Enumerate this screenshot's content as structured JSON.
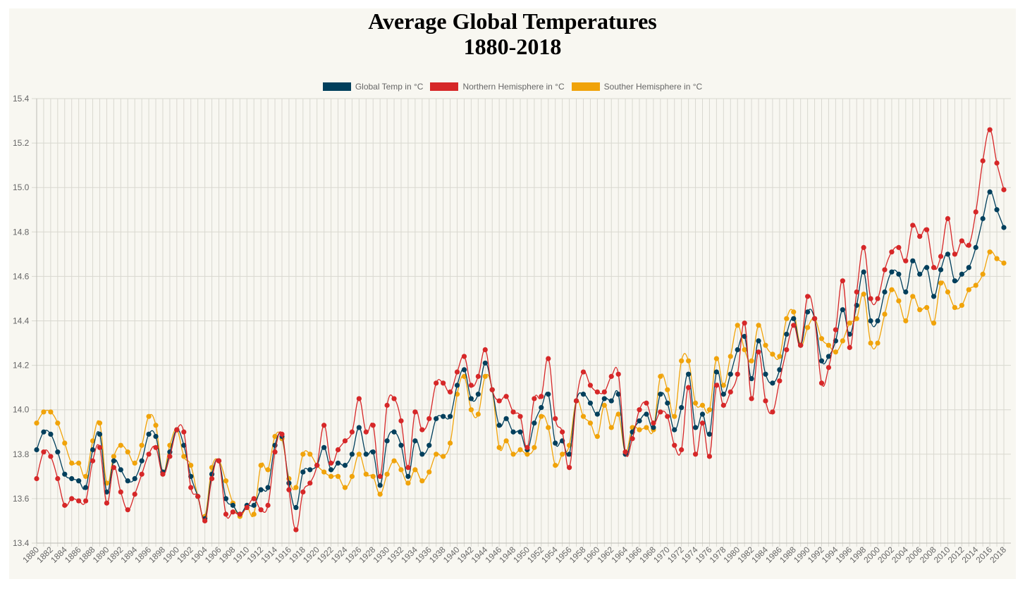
{
  "chart_data": {
    "type": "line",
    "title": [
      "Average Global Temperatures",
      "1880-2018"
    ],
    "xlabel": "",
    "ylabel": "",
    "ylim": [
      13.4,
      15.4
    ],
    "yticks": [
      "13.4",
      "13.6",
      "13.8",
      "14.0",
      "14.2",
      "14.4",
      "14.6",
      "14.8",
      "15.0",
      "15.2",
      "15.4"
    ],
    "grid": true,
    "legend_position": "top-center",
    "x": [
      1880,
      1881,
      1882,
      1883,
      1884,
      1885,
      1886,
      1887,
      1888,
      1889,
      1890,
      1891,
      1892,
      1893,
      1894,
      1895,
      1896,
      1897,
      1898,
      1899,
      1900,
      1901,
      1902,
      1903,
      1904,
      1905,
      1906,
      1907,
      1908,
      1909,
      1910,
      1911,
      1912,
      1913,
      1914,
      1915,
      1916,
      1917,
      1918,
      1919,
      1920,
      1921,
      1922,
      1923,
      1924,
      1925,
      1926,
      1927,
      1928,
      1929,
      1930,
      1931,
      1932,
      1933,
      1934,
      1935,
      1936,
      1937,
      1938,
      1939,
      1940,
      1941,
      1942,
      1943,
      1944,
      1945,
      1946,
      1947,
      1948,
      1949,
      1950,
      1951,
      1952,
      1953,
      1954,
      1955,
      1956,
      1957,
      1958,
      1959,
      1960,
      1961,
      1962,
      1963,
      1964,
      1965,
      1966,
      1967,
      1968,
      1969,
      1970,
      1971,
      1972,
      1973,
      1974,
      1975,
      1976,
      1977,
      1978,
      1979,
      1980,
      1981,
      1982,
      1983,
      1984,
      1985,
      1986,
      1987,
      1988,
      1989,
      1990,
      1991,
      1992,
      1993,
      1994,
      1995,
      1996,
      1997,
      1998,
      1999,
      2000,
      2001,
      2002,
      2003,
      2004,
      2005,
      2006,
      2007,
      2008,
      2009,
      2010,
      2011,
      2012,
      2013,
      2014,
      2015,
      2016,
      2017,
      2018
    ],
    "xtick_step": 2,
    "series": [
      {
        "name": "Global Temp in °C",
        "color": "#003f5c",
        "values": [
          13.82,
          13.9,
          13.89,
          13.81,
          13.71,
          13.69,
          13.68,
          13.65,
          13.82,
          13.89,
          13.63,
          13.77,
          13.73,
          13.68,
          13.69,
          13.77,
          13.89,
          13.88,
          13.72,
          13.81,
          13.91,
          13.84,
          13.7,
          13.61,
          13.51,
          13.71,
          13.77,
          13.6,
          13.57,
          13.53,
          13.57,
          13.57,
          13.64,
          13.65,
          13.84,
          13.88,
          13.67,
          13.56,
          13.72,
          13.73,
          13.75,
          13.83,
          13.73,
          13.76,
          13.75,
          13.8,
          13.92,
          13.8,
          13.81,
          13.66,
          13.86,
          13.9,
          13.84,
          13.7,
          13.86,
          13.8,
          13.84,
          13.96,
          13.97,
          13.97,
          14.11,
          14.18,
          14.05,
          14.07,
          14.21,
          14.09,
          13.93,
          13.96,
          13.9,
          13.9,
          13.82,
          13.94,
          14.01,
          14.07,
          13.85,
          13.86,
          13.8,
          14.04,
          14.07,
          14.03,
          13.98,
          14.05,
          14.04,
          14.07,
          13.8,
          13.9,
          13.95,
          13.98,
          13.92,
          14.07,
          14.03,
          13.91,
          14.01,
          14.16,
          13.92,
          13.98,
          13.89,
          14.17,
          14.07,
          14.16,
          14.27,
          14.33,
          14.14,
          14.31,
          14.16,
          14.12,
          14.18,
          14.34,
          14.41,
          14.29,
          14.44,
          14.41,
          14.22,
          14.24,
          14.31,
          14.45,
          14.34,
          14.47,
          14.62,
          14.4,
          14.4,
          14.53,
          14.62,
          14.61,
          14.53,
          14.67,
          14.61,
          14.64,
          14.51,
          14.63,
          14.7,
          14.58,
          14.61,
          14.64,
          14.73,
          14.86,
          14.98,
          14.9,
          14.82
        ]
      },
      {
        "name": "Northern Hemisphere in °C",
        "color": "#d62728",
        "values": [
          13.69,
          13.81,
          13.79,
          13.69,
          13.57,
          13.6,
          13.59,
          13.59,
          13.77,
          13.83,
          13.58,
          13.74,
          13.63,
          13.55,
          13.62,
          13.71,
          13.8,
          13.83,
          13.71,
          13.79,
          13.91,
          13.9,
          13.65,
          13.61,
          13.5,
          13.69,
          13.77,
          13.53,
          13.54,
          13.53,
          13.56,
          13.6,
          13.55,
          13.57,
          13.81,
          13.89,
          13.64,
          13.46,
          13.63,
          13.67,
          13.75,
          13.93,
          13.76,
          13.82,
          13.86,
          13.9,
          14.05,
          13.9,
          13.93,
          13.7,
          14.02,
          14.05,
          13.95,
          13.74,
          13.99,
          13.91,
          13.96,
          14.12,
          14.12,
          14.08,
          14.17,
          14.24,
          14.11,
          14.15,
          14.27,
          14.09,
          14.04,
          14.06,
          13.99,
          13.97,
          13.83,
          14.05,
          14.06,
          14.23,
          13.96,
          13.9,
          13.74,
          14.04,
          14.17,
          14.11,
          14.08,
          14.08,
          14.15,
          14.16,
          13.81,
          13.87,
          14.0,
          14.03,
          13.94,
          13.99,
          13.97,
          13.84,
          13.82,
          14.1,
          13.8,
          13.94,
          13.79,
          14.11,
          14.02,
          14.08,
          14.16,
          14.39,
          14.05,
          14.26,
          14.04,
          13.99,
          14.13,
          14.27,
          14.38,
          14.29,
          14.51,
          14.41,
          14.12,
          14.19,
          14.36,
          14.58,
          14.28,
          14.53,
          14.73,
          14.5,
          14.5,
          14.63,
          14.71,
          14.73,
          14.67,
          14.83,
          14.78,
          14.81,
          14.64,
          14.69,
          14.86,
          14.7,
          14.76,
          14.74,
          14.89,
          15.12,
          15.26,
          15.11,
          14.99
        ]
      },
      {
        "name": "Souther Hemisphere in °C",
        "color": "#f0a30a",
        "values": [
          13.94,
          13.99,
          13.99,
          13.94,
          13.85,
          13.76,
          13.76,
          13.7,
          13.86,
          13.94,
          13.67,
          13.79,
          13.84,
          13.81,
          13.76,
          13.84,
          13.97,
          13.93,
          13.72,
          13.84,
          13.91,
          13.79,
          13.75,
          13.61,
          13.52,
          13.74,
          13.77,
          13.68,
          13.58,
          13.52,
          13.56,
          13.53,
          13.75,
          13.73,
          13.88,
          13.87,
          13.69,
          13.65,
          13.8,
          13.8,
          13.75,
          13.72,
          13.7,
          13.7,
          13.65,
          13.7,
          13.8,
          13.71,
          13.7,
          13.62,
          13.71,
          13.77,
          13.73,
          13.67,
          13.73,
          13.68,
          13.72,
          13.8,
          13.79,
          13.85,
          14.07,
          14.15,
          14.0,
          13.98,
          14.15,
          14.09,
          13.83,
          13.86,
          13.8,
          13.82,
          13.8,
          13.83,
          13.97,
          13.92,
          13.75,
          13.8,
          13.84,
          14.04,
          13.97,
          13.94,
          13.88,
          14.02,
          13.92,
          13.98,
          13.81,
          13.92,
          13.91,
          13.92,
          13.91,
          14.15,
          14.09,
          13.97,
          14.22,
          14.22,
          14.03,
          14.02,
          14.0,
          14.23,
          14.11,
          14.24,
          14.38,
          14.27,
          14.22,
          14.38,
          14.29,
          14.25,
          14.24,
          14.41,
          14.44,
          14.29,
          14.37,
          14.41,
          14.32,
          14.29,
          14.26,
          14.31,
          14.39,
          14.41,
          14.52,
          14.3,
          14.3,
          14.43,
          14.54,
          14.49,
          14.4,
          14.51,
          14.45,
          14.46,
          14.39,
          14.57,
          14.53,
          14.46,
          14.47,
          14.54,
          14.56,
          14.61,
          14.71,
          14.68,
          14.66
        ]
      }
    ]
  }
}
